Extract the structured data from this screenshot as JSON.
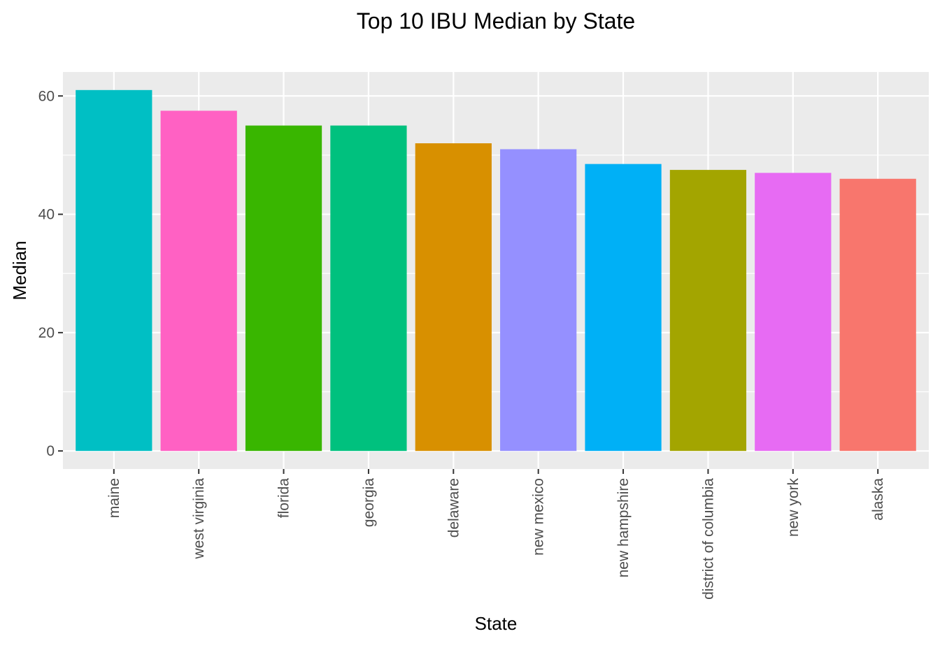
{
  "chart_data": {
    "type": "bar",
    "title": "Top 10 IBU Median by State",
    "xlabel": "State",
    "ylabel": "Median",
    "categories": [
      "maine",
      "west virginia",
      "florida",
      "georgia",
      "delaware",
      "new mexico",
      "new hampshire",
      "district of columbia",
      "new york",
      "alaska"
    ],
    "values": [
      61,
      57.5,
      55,
      55,
      52,
      51,
      48.5,
      47.5,
      47,
      46
    ],
    "colors": [
      "#00BFC4",
      "#FF61C3",
      "#39B600",
      "#00C17E",
      "#D89000",
      "#9590FF",
      "#00B0F6",
      "#A3A500",
      "#E76BF3",
      "#F8766D"
    ],
    "ylim": [
      -3.05,
      64.05
    ],
    "yticks": [
      0,
      20,
      40,
      60
    ],
    "grid": true,
    "legend": "none",
    "panel_background": "#EBEBEB",
    "grid_color": "#FFFFFF"
  }
}
